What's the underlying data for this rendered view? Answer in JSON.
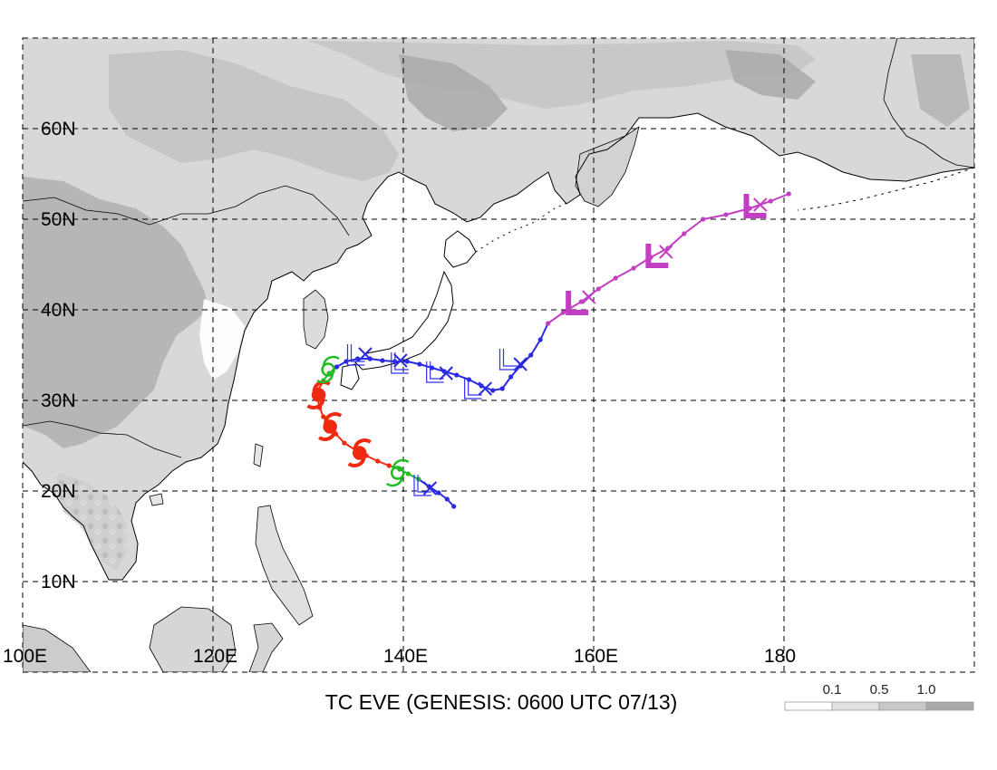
{
  "title": "TC EVE (GENESIS: 0600 UTC 07/13)",
  "legend": {
    "ticks": [
      "0.1",
      "0.5",
      "1.0"
    ],
    "colors": [
      "#ffffff",
      "#e2e2e2",
      "#c8c8c8",
      "#a9a9a9"
    ]
  },
  "lat_labels": [
    {
      "lat": 60,
      "label": "60N"
    },
    {
      "lat": 50,
      "label": "50N"
    },
    {
      "lat": 40,
      "label": "40N"
    },
    {
      "lat": 30,
      "label": "30N"
    },
    {
      "lat": 20,
      "label": "20N"
    },
    {
      "lat": 10,
      "label": "10N"
    }
  ],
  "lon_labels": [
    {
      "lon": 100,
      "label": "100E"
    },
    {
      "lon": 120,
      "label": "120E"
    },
    {
      "lon": 140,
      "label": "140E"
    },
    {
      "lon": 160,
      "label": "160E"
    },
    {
      "lon": 180,
      "label": "180"
    }
  ],
  "map_extent": {
    "lon_min": 100,
    "lon_max": 200,
    "lat_min": 0,
    "lat_max": 70
  },
  "track": {
    "points": [
      {
        "lon": 145.3,
        "lat": 18.3,
        "stage": "blue"
      },
      {
        "lon": 144.6,
        "lat": 19.1,
        "stage": "blue"
      },
      {
        "lon": 143.7,
        "lat": 19.8,
        "stage": "blue"
      },
      {
        "lon": 142.7,
        "lat": 20.5,
        "stage": "blue"
      },
      {
        "lon": 141.6,
        "lat": 21.3,
        "stage": "green"
      },
      {
        "lon": 140.5,
        "lat": 21.9,
        "stage": "green"
      },
      {
        "lon": 139.6,
        "lat": 22.4,
        "stage": "green"
      },
      {
        "lon": 138.5,
        "lat": 22.8,
        "stage": "red"
      },
      {
        "lon": 137.3,
        "lat": 23.3,
        "stage": "red"
      },
      {
        "lon": 136.1,
        "lat": 23.9,
        "stage": "red"
      },
      {
        "lon": 135.0,
        "lat": 24.5,
        "stage": "red"
      },
      {
        "lon": 133.8,
        "lat": 25.3,
        "stage": "red"
      },
      {
        "lon": 132.9,
        "lat": 26.3,
        "stage": "red"
      },
      {
        "lon": 132.2,
        "lat": 27.2,
        "stage": "red"
      },
      {
        "lon": 131.6,
        "lat": 28.2,
        "stage": "red"
      },
      {
        "lon": 131.2,
        "lat": 29.2,
        "stage": "red"
      },
      {
        "lon": 131.0,
        "lat": 30.2,
        "stage": "red"
      },
      {
        "lon": 131.1,
        "lat": 31.2,
        "stage": "red"
      },
      {
        "lon": 131.6,
        "lat": 32.2,
        "stage": "green"
      },
      {
        "lon": 132.2,
        "lat": 33.0,
        "stage": "green"
      },
      {
        "lon": 133.0,
        "lat": 33.7,
        "stage": "blue"
      },
      {
        "lon": 134.0,
        "lat": 34.3,
        "stage": "blue"
      },
      {
        "lon": 135.2,
        "lat": 34.6,
        "stage": "blue"
      },
      {
        "lon": 136.5,
        "lat": 34.6,
        "stage": "blue"
      },
      {
        "lon": 137.8,
        "lat": 34.4,
        "stage": "blue"
      },
      {
        "lon": 139.1,
        "lat": 34.3,
        "stage": "blue"
      },
      {
        "lon": 140.4,
        "lat": 34.3,
        "stage": "blue"
      },
      {
        "lon": 141.7,
        "lat": 34.0,
        "stage": "blue"
      },
      {
        "lon": 143.0,
        "lat": 33.6,
        "stage": "blue"
      },
      {
        "lon": 144.3,
        "lat": 33.2,
        "stage": "blue"
      },
      {
        "lon": 145.6,
        "lat": 32.8,
        "stage": "blue"
      },
      {
        "lon": 146.9,
        "lat": 32.3,
        "stage": "blue"
      },
      {
        "lon": 148.2,
        "lat": 31.6,
        "stage": "blue"
      },
      {
        "lon": 149.4,
        "lat": 31.1,
        "stage": "blue"
      },
      {
        "lon": 150.4,
        "lat": 31.3,
        "stage": "blue"
      },
      {
        "lon": 151.3,
        "lat": 32.6,
        "stage": "blue"
      },
      {
        "lon": 152.3,
        "lat": 33.8,
        "stage": "blue"
      },
      {
        "lon": 153.4,
        "lat": 35.0,
        "stage": "blue"
      },
      {
        "lon": 154.4,
        "lat": 36.7,
        "stage": "blue"
      },
      {
        "lon": 155.2,
        "lat": 38.5,
        "stage": "magenta"
      },
      {
        "lon": 156.8,
        "lat": 39.7,
        "stage": "magenta"
      },
      {
        "lon": 158.7,
        "lat": 40.9,
        "stage": "magenta"
      },
      {
        "lon": 160.5,
        "lat": 42.3,
        "stage": "magenta"
      },
      {
        "lon": 162.3,
        "lat": 43.5,
        "stage": "magenta"
      },
      {
        "lon": 164.2,
        "lat": 44.6,
        "stage": "magenta"
      },
      {
        "lon": 166.0,
        "lat": 45.8,
        "stage": "magenta"
      },
      {
        "lon": 167.8,
        "lat": 46.8,
        "stage": "magenta"
      },
      {
        "lon": 169.5,
        "lat": 48.4,
        "stage": "magenta"
      },
      {
        "lon": 171.5,
        "lat": 50.0,
        "stage": "magenta"
      },
      {
        "lon": 173.9,
        "lat": 50.5,
        "stage": "magenta"
      },
      {
        "lon": 176.4,
        "lat": 51.2,
        "stage": "magenta"
      },
      {
        "lon": 178.6,
        "lat": 52.0,
        "stage": "magenta"
      },
      {
        "lon": 180.5,
        "lat": 52.8,
        "stage": "magenta"
      }
    ],
    "stage_colors": {
      "blue": "#2a2ae0",
      "green": "#22bb22",
      "red": "#ee2a10",
      "magenta": "#c23ec2"
    },
    "low_markers": [
      {
        "lon": 142.0,
        "lat": 20.4,
        "style": "hollow",
        "color": "#3333ee"
      },
      {
        "lon": 135.0,
        "lat": 34.8,
        "style": "hollow",
        "color": "#3333ee"
      },
      {
        "lon": 139.6,
        "lat": 33.9,
        "style": "hollow",
        "color": "#3333ee"
      },
      {
        "lon": 143.3,
        "lat": 32.9,
        "style": "hollow",
        "color": "#3333ee"
      },
      {
        "lon": 147.3,
        "lat": 31.1,
        "style": "hollow",
        "color": "#3333ee"
      },
      {
        "lon": 151.0,
        "lat": 34.3,
        "style": "hollow",
        "color": "#3333ee"
      },
      {
        "lon": 158.3,
        "lat": 40.5,
        "style": "solid",
        "color": "#c23ec2"
      },
      {
        "lon": 166.7,
        "lat": 45.7,
        "style": "solid",
        "color": "#c23ec2"
      },
      {
        "lon": 177.0,
        "lat": 51.2,
        "style": "solid",
        "color": "#c23ec2"
      }
    ],
    "x_markers": [
      {
        "lon": 142.8,
        "lat": 20.3,
        "color": "#2a2ae0"
      },
      {
        "lon": 136.0,
        "lat": 35.1,
        "color": "#2a2ae0"
      },
      {
        "lon": 139.7,
        "lat": 34.4,
        "color": "#2a2ae0"
      },
      {
        "lon": 144.5,
        "lat": 33.0,
        "color": "#2a2ae0"
      },
      {
        "lon": 148.6,
        "lat": 31.3,
        "color": "#2a2ae0"
      },
      {
        "lon": 152.3,
        "lat": 34.0,
        "color": "#2a2ae0"
      },
      {
        "lon": 159.5,
        "lat": 41.4,
        "color": "#c23ec2"
      },
      {
        "lon": 167.6,
        "lat": 46.4,
        "color": "#c23ec2"
      },
      {
        "lon": 177.5,
        "lat": 51.6,
        "color": "#c23ec2"
      }
    ],
    "storm_symbols": [
      {
        "lon": 131.1,
        "lat": 30.6,
        "kind": "typhoon",
        "color": "#ee2a10"
      },
      {
        "lon": 132.3,
        "lat": 27.1,
        "kind": "typhoon",
        "color": "#ee2a10"
      },
      {
        "lon": 135.4,
        "lat": 24.2,
        "kind": "typhoon",
        "color": "#ee2a10"
      },
      {
        "lon": 139.4,
        "lat": 22.0,
        "kind": "tropical-storm",
        "color": "#22bb22"
      },
      {
        "lon": 132.1,
        "lat": 33.4,
        "kind": "tropical-storm",
        "color": "#22bb22"
      }
    ]
  }
}
